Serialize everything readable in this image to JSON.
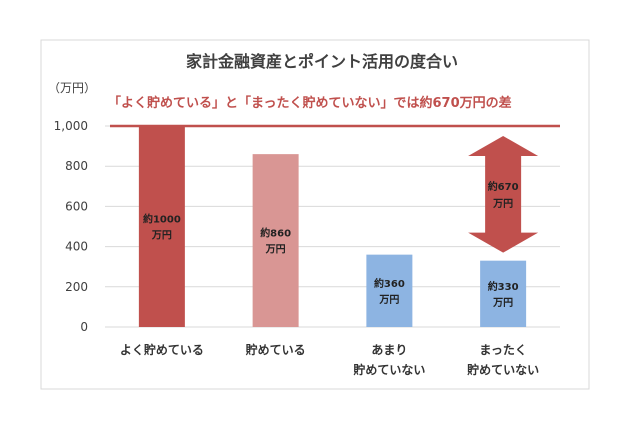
{
  "chart_data": {
    "type": "bar",
    "title": "家計金融資産とポイント活用の度合い",
    "ylabel": "（万円）",
    "ylim": [
      0,
      1000
    ],
    "yticks": [
      0,
      200,
      400,
      600,
      800,
      1000
    ],
    "ytick_labels": [
      "0",
      "200",
      "400",
      "600",
      "800",
      "1,000"
    ],
    "grid": true,
    "categories": [
      [
        "よく貯めている"
      ],
      [
        "貯めている"
      ],
      [
        "あまり",
        "貯めていない"
      ],
      [
        "まったく",
        "貯めていない"
      ]
    ],
    "values": [
      1000,
      860,
      360,
      330
    ],
    "data_labels": [
      [
        "約1000",
        "万円"
      ],
      [
        "約860",
        "万円"
      ],
      [
        "約360",
        "万円"
      ],
      [
        "約330",
        "万円"
      ]
    ],
    "colors": [
      "#c0504d",
      "#d99694",
      "#8db4e2",
      "#8db4e2"
    ],
    "reference_line": {
      "value": 1000,
      "label": "「よく貯めている」と「まったく貯めていない」では約670万円の差",
      "color": "#c0504d"
    },
    "difference_arrow": {
      "from": 330,
      "to": 1000,
      "label": [
        "約670",
        "万円"
      ],
      "color": "#c0504d"
    }
  }
}
